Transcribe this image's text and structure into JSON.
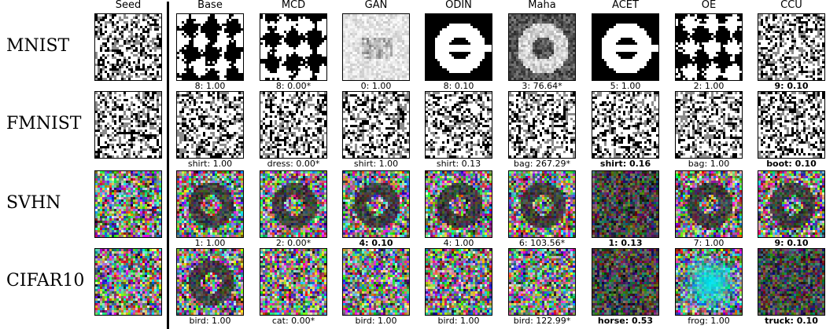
{
  "columns": [
    "Seed",
    "Base",
    "MCD",
    "GAN",
    "ODIN",
    "Maha",
    "ACET",
    "OE",
    "CCU"
  ],
  "rows": [
    {
      "label": "MNIST",
      "kind": "gray",
      "cells": [
        {
          "caption": "",
          "bold": false,
          "style": "noise"
        },
        {
          "caption": "8: 1.00",
          "bold": false,
          "style": "blobs"
        },
        {
          "caption": "8: 0.00*",
          "bold": false,
          "style": "blobs"
        },
        {
          "caption": "0: 1.00",
          "bold": false,
          "style": "bright"
        },
        {
          "caption": "8: 0.10",
          "bold": false,
          "style": "digit3"
        },
        {
          "caption": "3: 76.64*",
          "bold": false,
          "style": "digit9"
        },
        {
          "caption": "5: 1.00",
          "bold": false,
          "style": "digit3"
        },
        {
          "caption": "2: 1.00",
          "bold": false,
          "style": "blobs"
        },
        {
          "caption": "9: 0.10",
          "bold": true,
          "style": "noise"
        }
      ]
    },
    {
      "label": "FMNIST",
      "kind": "gray",
      "cells": [
        {
          "caption": "",
          "bold": false,
          "style": "noise"
        },
        {
          "caption": "shirt: 1.00",
          "bold": false,
          "style": "noise"
        },
        {
          "caption": "dress: 0.00*",
          "bold": false,
          "style": "noise"
        },
        {
          "caption": "shirt: 1.00",
          "bold": false,
          "style": "noise"
        },
        {
          "caption": "shirt: 0.13",
          "bold": false,
          "style": "noise"
        },
        {
          "caption": "bag: 267.29*",
          "bold": false,
          "style": "noise"
        },
        {
          "caption": "shirt: 0.16",
          "bold": true,
          "style": "noise"
        },
        {
          "caption": "bag: 1.00",
          "bold": false,
          "style": "noise"
        },
        {
          "caption": "boot: 0.10",
          "bold": true,
          "style": "noise"
        }
      ]
    },
    {
      "label": "SVHN",
      "kind": "color",
      "cells": [
        {
          "caption": "",
          "bold": false,
          "style": "noise"
        },
        {
          "caption": "1: 1.00",
          "bold": false,
          "style": "glyph"
        },
        {
          "caption": "2: 0.00*",
          "bold": false,
          "style": "glyph"
        },
        {
          "caption": "4: 0.10",
          "bold": true,
          "style": "glyph"
        },
        {
          "caption": "4: 1.00",
          "bold": false,
          "style": "glyph"
        },
        {
          "caption": "6: 103.56*",
          "bold": false,
          "style": "glyph"
        },
        {
          "caption": "1: 0.13",
          "bold": true,
          "style": "dark"
        },
        {
          "caption": "7: 1.00",
          "bold": false,
          "style": "glyph"
        },
        {
          "caption": "9: 0.10",
          "bold": true,
          "style": "glyph"
        }
      ]
    },
    {
      "label": "CIFAR10",
      "kind": "color",
      "cells": [
        {
          "caption": "",
          "bold": false,
          "style": "noise"
        },
        {
          "caption": "bird: 1.00",
          "bold": false,
          "style": "glyph"
        },
        {
          "caption": "cat: 0.00*",
          "bold": false,
          "style": "noise"
        },
        {
          "caption": "bird: 1.00",
          "bold": false,
          "style": "noise"
        },
        {
          "caption": "bird: 1.00",
          "bold": false,
          "style": "noise"
        },
        {
          "caption": "bird: 122.99*",
          "bold": false,
          "style": "noise"
        },
        {
          "caption": "horse: 0.53",
          "bold": true,
          "style": "dark"
        },
        {
          "caption": "frog: 1.00",
          "bold": false,
          "style": "cyan"
        },
        {
          "caption": "truck: 0.10",
          "bold": true,
          "style": "dark"
        }
      ]
    }
  ]
}
